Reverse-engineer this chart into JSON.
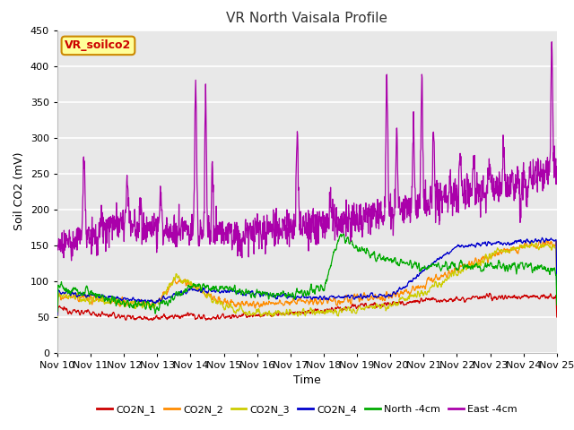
{
  "title": "VR North Vaisala Profile",
  "xlabel": "Time",
  "ylabel": "Soil CO2 (mV)",
  "ylim": [
    0,
    450
  ],
  "xlim": [
    0,
    15
  ],
  "xtick_labels": [
    "Nov 10",
    "Nov 11",
    "Nov 12",
    "Nov 13",
    "Nov 14",
    "Nov 15",
    "Nov 16",
    "Nov 17",
    "Nov 18",
    "Nov 19",
    "Nov 20",
    "Nov 21",
    "Nov 22",
    "Nov 23",
    "Nov 24",
    "Nov 25"
  ],
  "legend_label": "VR_soilco2",
  "series_labels": [
    "CO2N_1",
    "CO2N_2",
    "CO2N_3",
    "CO2N_4",
    "North -4cm",
    "East -4cm"
  ],
  "series_colors": [
    "#cc0000",
    "#ff8c00",
    "#cccc00",
    "#0000cc",
    "#00aa00",
    "#aa00aa"
  ],
  "fig_facecolor": "#ffffff",
  "plot_facecolor": "#e8e8e8",
  "grid_color": "#ffffff",
  "legend_box_facecolor": "#ffff99",
  "legend_box_edgecolor": "#cc8800",
  "legend_text_color": "#cc0000"
}
